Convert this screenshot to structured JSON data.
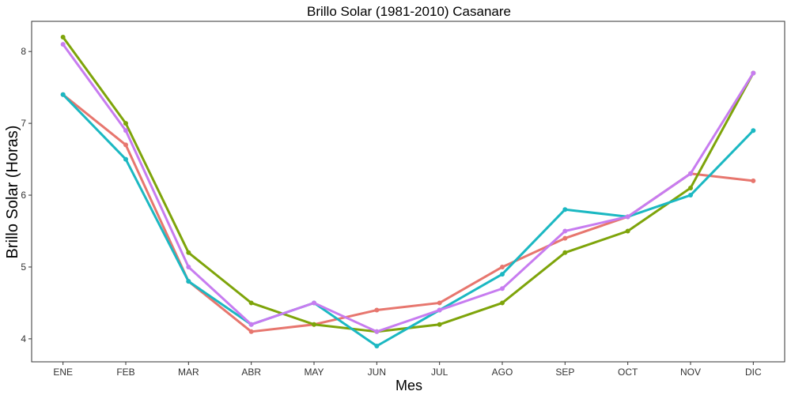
{
  "chart_data": {
    "type": "line",
    "title": "Brillo Solar (1981-2010)  Casanare",
    "xlabel": "Mes",
    "ylabel": "Brillo Solar (Horas)",
    "categories": [
      "ENE",
      "FEB",
      "MAR",
      "ABR",
      "MAY",
      "JUN",
      "JUL",
      "AGO",
      "SEP",
      "OCT",
      "NOV",
      "DIC"
    ],
    "yticks": [
      4,
      5,
      6,
      7,
      8
    ],
    "ylim": [
      3.68,
      8.42
    ],
    "grid": false,
    "legend": "none",
    "series": [
      {
        "color": "#E7766E",
        "values": [
          7.4,
          6.7,
          4.8,
          4.1,
          4.2,
          4.4,
          4.5,
          5.0,
          5.4,
          5.7,
          6.3,
          6.2
        ]
      },
      {
        "color": "#7EA40A",
        "values": [
          8.2,
          7.0,
          5.2,
          4.5,
          4.2,
          4.1,
          4.2,
          4.5,
          5.2,
          5.5,
          6.1,
          7.7
        ]
      },
      {
        "color": "#1BB8C2",
        "values": [
          7.4,
          6.5,
          4.8,
          4.2,
          4.5,
          3.9,
          4.4,
          4.9,
          5.8,
          5.7,
          6.0,
          6.9
        ]
      },
      {
        "color": "#C77CF0",
        "values": [
          8.1,
          6.9,
          5.0,
          4.2,
          4.5,
          4.1,
          4.4,
          4.7,
          5.5,
          5.7,
          6.3,
          7.7
        ]
      }
    ]
  }
}
